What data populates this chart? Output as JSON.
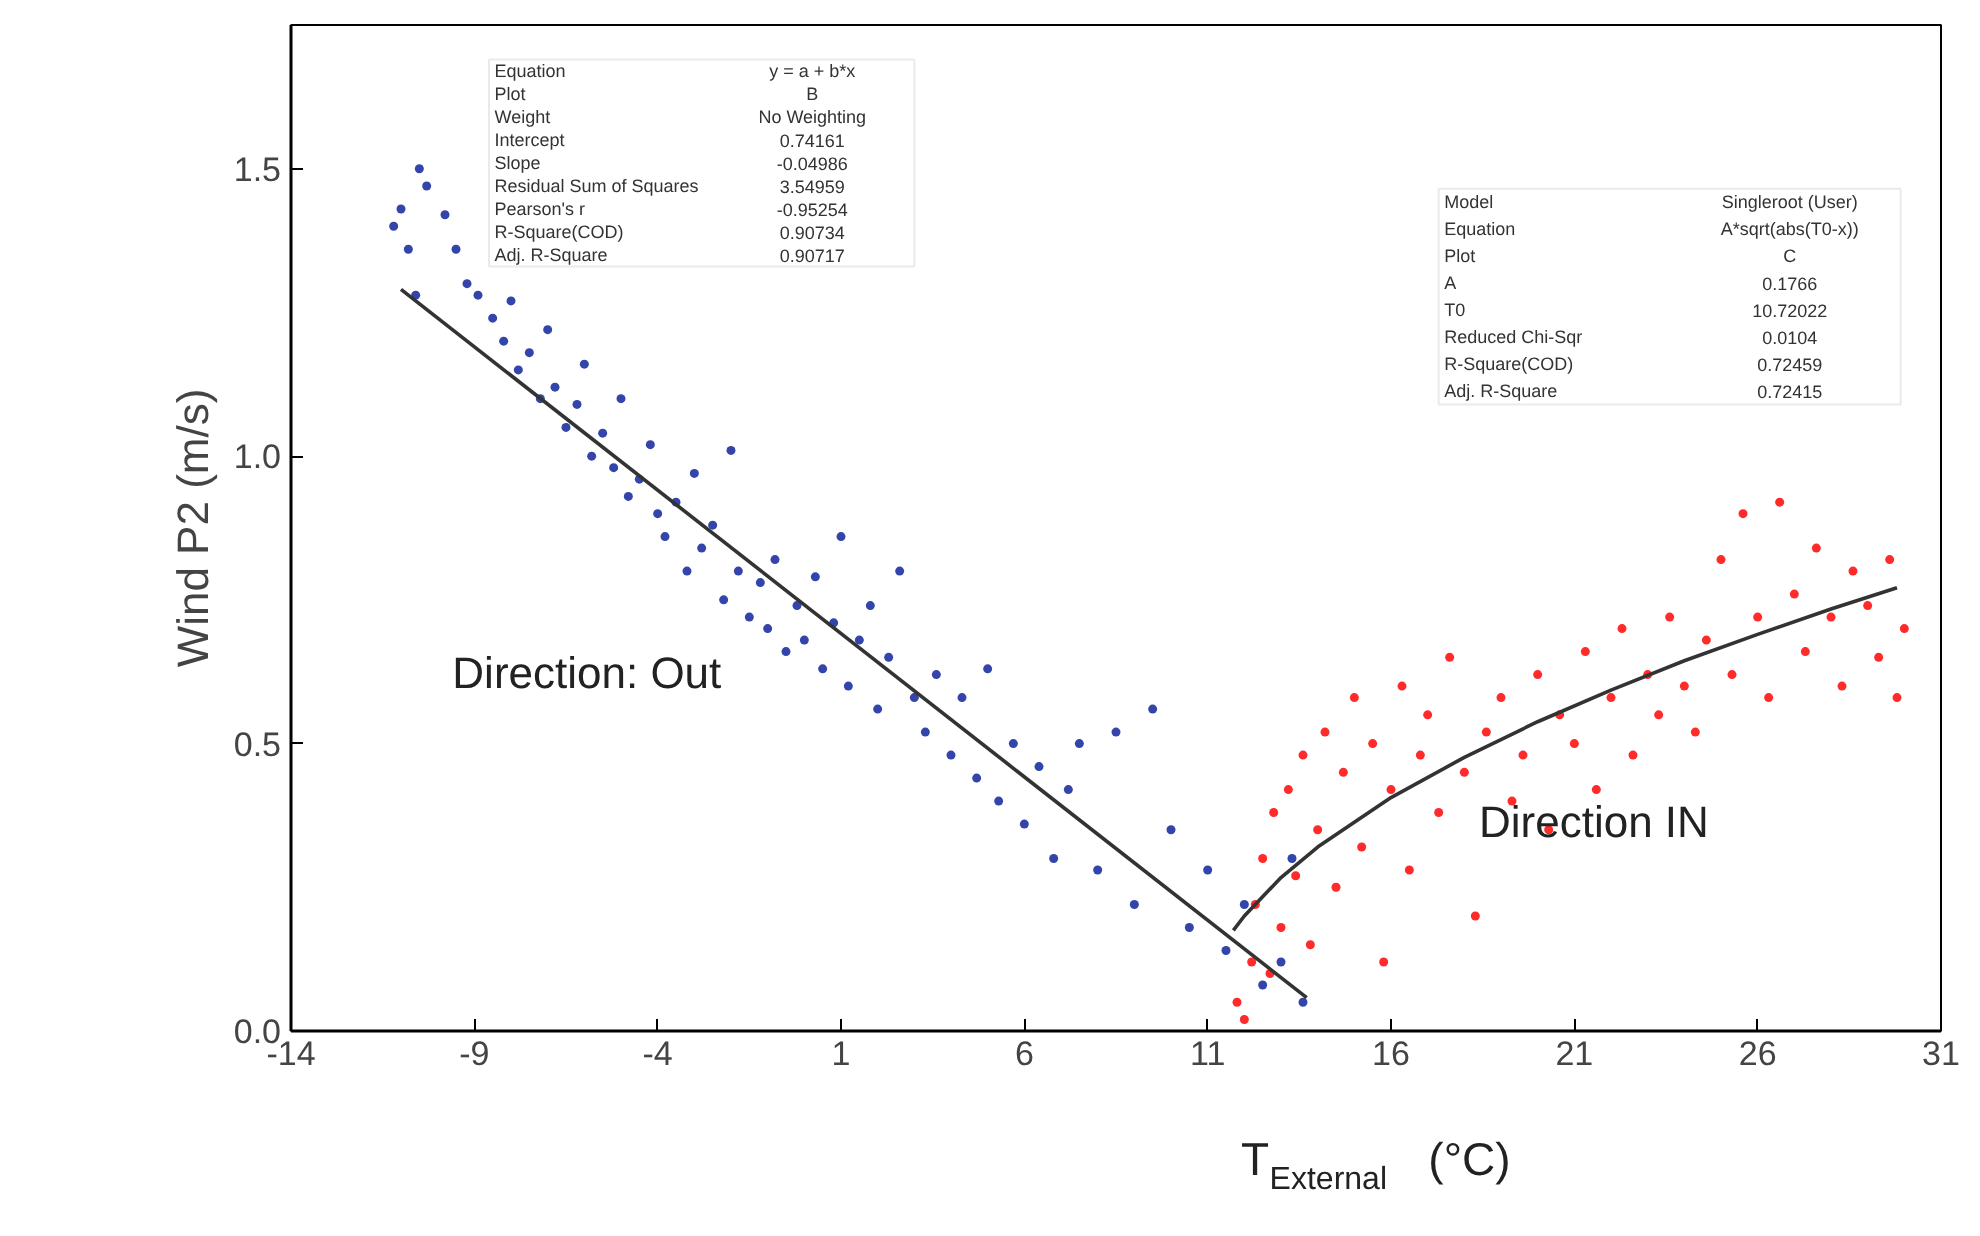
{
  "chart_data": {
    "type": "scatter",
    "xlabel": "T$_{External}$ (°C)",
    "ylabel": "Wind P2 (m/s)",
    "xlim": [
      -14,
      31
    ],
    "xticks": [
      -14,
      -9,
      -4,
      1,
      6,
      11,
      16,
      21,
      26,
      31
    ],
    "ylim": [
      0,
      1.75
    ],
    "yticks": [
      {
        "value": 0,
        "label": "0.0"
      },
      {
        "value": 0.5,
        "label": "0.5"
      },
      {
        "value": 1,
        "label": "1.0"
      },
      {
        "value": 1.5,
        "label": "1.5"
      }
    ],
    "grid": false,
    "marker": "circle",
    "series": [
      {
        "name": "Direction: Out",
        "color": "#3344aa",
        "x": [
          -11.2,
          -11,
          -10.8,
          -10.5,
          -10.3,
          -10.6,
          -9.8,
          -9.5,
          -9.2,
          -8.9,
          -8.5,
          -8.2,
          -8,
          -7.8,
          -7.5,
          -7.2,
          -7,
          -6.8,
          -6.5,
          -6.2,
          -6,
          -5.8,
          -5.5,
          -5.2,
          -5,
          -4.8,
          -4.5,
          -4.2,
          -4,
          -3.8,
          -3.5,
          -3.2,
          -3,
          -2.8,
          -2.5,
          -2.2,
          -2,
          -1.8,
          -1.5,
          -1.2,
          -1,
          -0.8,
          -0.5,
          -0.2,
          0,
          0.3,
          0.5,
          0.8,
          1,
          1.2,
          1.5,
          1.8,
          2,
          2.3,
          2.6,
          3,
          3.3,
          3.6,
          4,
          4.3,
          4.7,
          5,
          5.3,
          5.7,
          6,
          6.4,
          6.8,
          7.2,
          7.5,
          8,
          8.5,
          9,
          9.5,
          10,
          10.5,
          11,
          11.5,
          12,
          12.5,
          13,
          13.3,
          13.6
        ],
        "values": [
          1.4,
          1.43,
          1.36,
          1.5,
          1.47,
          1.28,
          1.42,
          1.36,
          1.3,
          1.28,
          1.24,
          1.2,
          1.27,
          1.15,
          1.18,
          1.1,
          1.22,
          1.12,
          1.05,
          1.09,
          1.16,
          1.0,
          1.04,
          0.98,
          1.1,
          0.93,
          0.96,
          1.02,
          0.9,
          0.86,
          0.92,
          0.8,
          0.97,
          0.84,
          0.88,
          0.75,
          1.01,
          0.8,
          0.72,
          0.78,
          0.7,
          0.82,
          0.66,
          0.74,
          0.68,
          0.79,
          0.63,
          0.71,
          0.86,
          0.6,
          0.68,
          0.74,
          0.56,
          0.65,
          0.8,
          0.58,
          0.52,
          0.62,
          0.48,
          0.58,
          0.44,
          0.63,
          0.4,
          0.5,
          0.36,
          0.46,
          0.3,
          0.42,
          0.5,
          0.28,
          0.52,
          0.22,
          0.56,
          0.35,
          0.18,
          0.28,
          0.14,
          0.22,
          0.08,
          0.12,
          0.3,
          0.05
        ]
      },
      {
        "name": "Direction IN",
        "color": "#ff2a2a",
        "x": [
          11.8,
          12,
          12.2,
          12.3,
          12.5,
          12.7,
          12.8,
          13,
          13.2,
          13.4,
          13.6,
          13.8,
          14,
          14.2,
          14.5,
          14.7,
          15,
          15.2,
          15.5,
          15.8,
          16,
          16.3,
          16.5,
          16.8,
          17,
          17.3,
          17.6,
          18,
          18.3,
          18.6,
          19,
          19.3,
          19.6,
          20,
          20.3,
          20.6,
          21,
          21.3,
          21.6,
          22,
          22.3,
          22.6,
          23,
          23.3,
          23.6,
          24,
          24.3,
          24.6,
          25,
          25.3,
          25.6,
          26,
          26.3,
          26.6,
          27,
          27.3,
          27.6,
          28,
          28.3,
          28.6,
          29,
          29.3,
          29.6,
          30,
          29.8
        ],
        "values": [
          0.05,
          0.02,
          0.12,
          0.22,
          0.3,
          0.1,
          0.38,
          0.18,
          0.42,
          0.27,
          0.48,
          0.15,
          0.35,
          0.52,
          0.25,
          0.45,
          0.58,
          0.32,
          0.5,
          0.12,
          0.42,
          0.6,
          0.28,
          0.48,
          0.55,
          0.38,
          0.65,
          0.45,
          0.2,
          0.52,
          0.58,
          0.4,
          0.48,
          0.62,
          0.35,
          0.55,
          0.5,
          0.66,
          0.42,
          0.58,
          0.7,
          0.48,
          0.62,
          0.55,
          0.72,
          0.6,
          0.52,
          0.68,
          0.82,
          0.62,
          0.9,
          0.72,
          0.58,
          0.92,
          0.76,
          0.66,
          0.84,
          0.72,
          0.6,
          0.8,
          0.74,
          0.65,
          0.82,
          0.7,
          0.58
        ]
      },
      {
        "type": "line",
        "marker": "none",
        "color": "#333333",
        "x": [
          -11,
          13.7
        ],
        "values": [
          1.29,
          0.058
        ]
      },
      {
        "type": "line",
        "marker": "none",
        "color": "#333333",
        "x": [
          11.7,
          12,
          13,
          14,
          16,
          18,
          20,
          22,
          24,
          26,
          28,
          29.8
        ],
        "values": [
          0.175,
          0.2,
          0.267,
          0.32,
          0.406,
          0.476,
          0.538,
          0.593,
          0.644,
          0.69,
          0.734,
          0.771
        ]
      }
    ],
    "annotations": [
      "Equation\ty = a + b*x",
      "Plot\tB",
      "Weight\tNo Weighting",
      "Intercept\t0.74161",
      "Slope\t-0.04986",
      "Residual Sum of Squares\t3.54959",
      "Pearson's r\t-0.95254",
      "R-Square(COD)\t0.90734",
      "Adj. R-Square\t0.90717",
      "Model\tSingleroot (User)",
      "Equation\tA*sqrt(abs(T0-x))",
      "Plot\tC",
      "A\t0.1766",
      "T0\t10.72022",
      "Reduced Chi-Sqr\t0.0104",
      "R-Square(COD)\t0.72459",
      "Adj. R-Square\t0.72415"
    ]
  }
}
